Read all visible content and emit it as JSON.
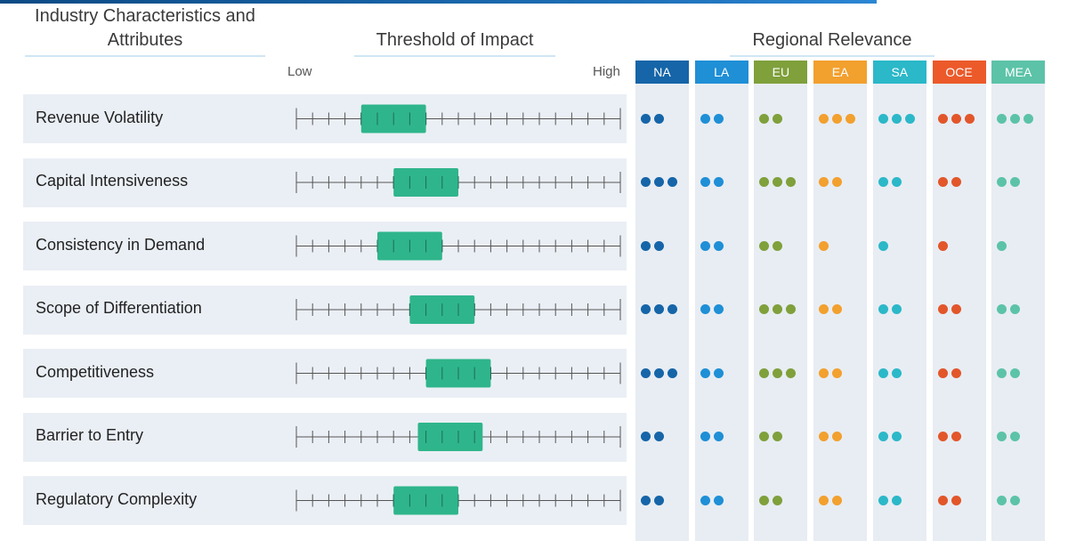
{
  "headings": {
    "characteristics": "Industry Characteristics and Attributes",
    "threshold": "Threshold of Impact",
    "regional": "Regional Relevance"
  },
  "axis": {
    "low": "Low",
    "high": "High"
  },
  "chart_data": {
    "type": "table",
    "scale": {
      "min": 0,
      "max": 20,
      "ticks": 21
    },
    "regions": [
      {
        "code": "NA",
        "color": "#1565a8",
        "dot_color": "#1565a8"
      },
      {
        "code": "LA",
        "color": "#1f8fd6",
        "dot_color": "#1f8fd6"
      },
      {
        "code": "EU",
        "color": "#7fa03b",
        "dot_color": "#7fa03b"
      },
      {
        "code": "EA",
        "color": "#f2a02e",
        "dot_color": "#f2a02e"
      },
      {
        "code": "SA",
        "color": "#2bb8c8",
        "dot_color": "#2bb8c8"
      },
      {
        "code": "OCE",
        "color": "#ec5a2a",
        "dot_color": "#e2562a"
      },
      {
        "code": "MEA",
        "color": "#5cc3a8",
        "dot_color": "#5cc3a8"
      }
    ],
    "rows": [
      {
        "label": "Revenue Volatility",
        "impact_start": 4,
        "impact_end": 8,
        "relevance": [
          2,
          2,
          2,
          3,
          3,
          3,
          3
        ]
      },
      {
        "label": "Capital Intensiveness",
        "impact_start": 6,
        "impact_end": 10,
        "relevance": [
          3,
          2,
          3,
          2,
          2,
          2,
          2
        ]
      },
      {
        "label": "Consistency in Demand",
        "impact_start": 5,
        "impact_end": 9,
        "relevance": [
          2,
          2,
          2,
          1,
          1,
          1,
          1
        ]
      },
      {
        "label": "Scope of Differentiation",
        "impact_start": 7,
        "impact_end": 11,
        "relevance": [
          3,
          2,
          3,
          2,
          2,
          2,
          2
        ]
      },
      {
        "label": "Competitiveness",
        "impact_start": 8,
        "impact_end": 12,
        "relevance": [
          3,
          2,
          3,
          2,
          2,
          2,
          2
        ]
      },
      {
        "label": "Barrier to Entry",
        "impact_start": 7.5,
        "impact_end": 11.5,
        "relevance": [
          2,
          2,
          2,
          2,
          2,
          2,
          2
        ]
      },
      {
        "label": "Regulatory Complexity",
        "impact_start": 6,
        "impact_end": 10,
        "relevance": [
          2,
          2,
          2,
          2,
          2,
          2,
          2
        ]
      }
    ],
    "impact_color": "#2fb58b"
  }
}
